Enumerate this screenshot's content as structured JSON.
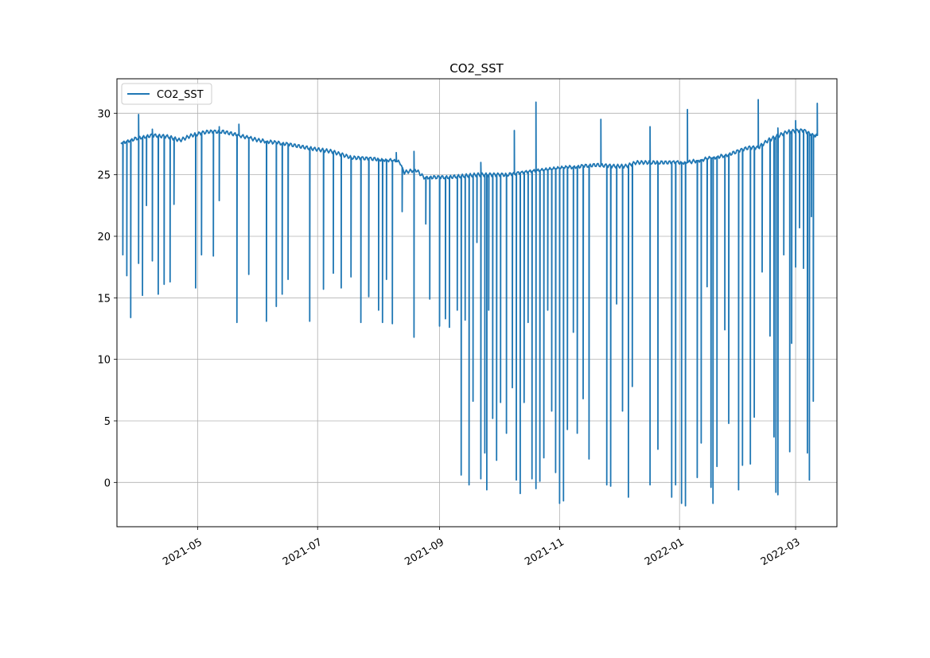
{
  "chart_data": {
    "type": "line",
    "title": "CO2_SST",
    "xlabel": "",
    "ylabel": "",
    "x_axis_type": "date",
    "xlim": [
      "2021-03-21",
      "2022-03-22"
    ],
    "ylim": [
      -3.6,
      32.8
    ],
    "x_ticks": [
      "2021-05",
      "2021-07",
      "2021-09",
      "2021-11",
      "2022-01",
      "2022-03"
    ],
    "x_tick_dates": [
      "2021-05-01",
      "2021-07-01",
      "2021-09-01",
      "2021-11-01",
      "2022-01-01",
      "2022-03-01"
    ],
    "y_ticks": [
      0,
      5,
      10,
      15,
      20,
      25,
      30
    ],
    "grid": true,
    "legend": {
      "position": "top-left",
      "entries": [
        "CO2_SST"
      ]
    },
    "line_color": "#1f77b4",
    "series": [
      {
        "name": "CO2_SST",
        "baseline": [
          [
            "2021-03-23",
            27.6
          ],
          [
            "2021-04-01",
            28.0
          ],
          [
            "2021-04-08",
            28.2
          ],
          [
            "2021-04-16",
            28.1
          ],
          [
            "2021-04-22",
            27.8
          ],
          [
            "2021-04-28",
            28.2
          ],
          [
            "2021-05-06",
            28.5
          ],
          [
            "2021-05-14",
            28.5
          ],
          [
            "2021-05-22",
            28.2
          ],
          [
            "2021-06-01",
            27.8
          ],
          [
            "2021-06-15",
            27.5
          ],
          [
            "2021-06-29",
            27.1
          ],
          [
            "2021-07-08",
            26.9
          ],
          [
            "2021-07-18",
            26.4
          ],
          [
            "2021-07-28",
            26.3
          ],
          [
            "2021-08-06",
            26.2
          ],
          [
            "2021-08-12",
            26.0
          ],
          [
            "2021-08-14",
            25.2
          ],
          [
            "2021-08-20",
            25.4
          ],
          [
            "2021-08-24",
            24.8
          ],
          [
            "2021-09-05",
            24.8
          ],
          [
            "2021-09-20",
            25.0
          ],
          [
            "2021-10-05",
            25.0
          ],
          [
            "2021-10-20",
            25.3
          ],
          [
            "2021-11-05",
            25.6
          ],
          [
            "2021-11-20",
            25.8
          ],
          [
            "2021-11-28",
            25.7
          ],
          [
            "2021-12-05",
            25.7
          ],
          [
            "2021-12-10",
            26.0
          ],
          [
            "2021-12-25",
            26.0
          ],
          [
            "2022-01-05",
            26.0
          ],
          [
            "2022-01-15",
            26.3
          ],
          [
            "2022-01-25",
            26.6
          ],
          [
            "2022-02-05",
            27.2
          ],
          [
            "2022-02-10",
            27.2
          ],
          [
            "2022-02-15",
            27.8
          ],
          [
            "2022-02-25",
            28.5
          ],
          [
            "2022-03-05",
            28.6
          ],
          [
            "2022-03-10",
            28.2
          ]
        ],
        "drops": [
          [
            "2021-03-24",
            18.5
          ],
          [
            "2021-03-26",
            16.8
          ],
          [
            "2021-03-28",
            13.4
          ],
          [
            "2021-04-01",
            17.8
          ],
          [
            "2021-04-03",
            15.2
          ],
          [
            "2021-04-05",
            22.5
          ],
          [
            "2021-04-08",
            18.0
          ],
          [
            "2021-04-11",
            15.3
          ],
          [
            "2021-04-14",
            16.1
          ],
          [
            "2021-04-17",
            16.3
          ],
          [
            "2021-04-19",
            22.6
          ],
          [
            "2021-04-30",
            15.8
          ],
          [
            "2021-05-03",
            18.5
          ],
          [
            "2021-05-09",
            18.4
          ],
          [
            "2021-05-12",
            22.9
          ],
          [
            "2021-05-21",
            13.0
          ],
          [
            "2021-05-27",
            16.9
          ],
          [
            "2021-06-05",
            13.1
          ],
          [
            "2021-06-10",
            14.3
          ],
          [
            "2021-06-13",
            15.3
          ],
          [
            "2021-06-16",
            16.5
          ],
          [
            "2021-06-27",
            13.1
          ],
          [
            "2021-07-04",
            15.7
          ],
          [
            "2021-07-09",
            17.0
          ],
          [
            "2021-07-13",
            15.8
          ],
          [
            "2021-07-18",
            16.7
          ],
          [
            "2021-07-23",
            13.0
          ],
          [
            "2021-07-27",
            15.1
          ],
          [
            "2021-08-01",
            14.0
          ],
          [
            "2021-08-03",
            13.0
          ],
          [
            "2021-08-05",
            16.5
          ],
          [
            "2021-08-08",
            12.9
          ],
          [
            "2021-08-13",
            22.0
          ],
          [
            "2021-08-19",
            11.8
          ],
          [
            "2021-08-25",
            21.0
          ],
          [
            "2021-08-27",
            14.9
          ],
          [
            "2021-09-01",
            12.7
          ],
          [
            "2021-09-04",
            13.3
          ],
          [
            "2021-09-06",
            12.6
          ],
          [
            "2021-09-10",
            14.0
          ],
          [
            "2021-09-12",
            0.6
          ],
          [
            "2021-09-14",
            13.2
          ],
          [
            "2021-09-16",
            -0.2
          ],
          [
            "2021-09-18",
            6.6
          ],
          [
            "2021-09-20",
            19.5
          ],
          [
            "2021-09-22",
            0.3
          ],
          [
            "2021-09-24",
            2.4
          ],
          [
            "2021-09-25",
            -0.6
          ],
          [
            "2021-09-26",
            14.0
          ],
          [
            "2021-09-28",
            5.2
          ],
          [
            "2021-09-30",
            1.8
          ],
          [
            "2021-10-02",
            6.5
          ],
          [
            "2021-10-05",
            4.0
          ],
          [
            "2021-10-08",
            7.7
          ],
          [
            "2021-10-10",
            0.2
          ],
          [
            "2021-10-12",
            -0.9
          ],
          [
            "2021-10-14",
            6.5
          ],
          [
            "2021-10-16",
            13.0
          ],
          [
            "2021-10-18",
            0.3
          ],
          [
            "2021-10-20",
            -0.5
          ],
          [
            "2021-10-22",
            0.1
          ],
          [
            "2021-10-24",
            2.0
          ],
          [
            "2021-10-26",
            14.0
          ],
          [
            "2021-10-28",
            5.8
          ],
          [
            "2021-10-30",
            0.8
          ],
          [
            "2021-11-01",
            -1.7
          ],
          [
            "2021-11-03",
            -1.5
          ],
          [
            "2021-11-05",
            4.3
          ],
          [
            "2021-11-08",
            12.2
          ],
          [
            "2021-11-10",
            4.0
          ],
          [
            "2021-11-13",
            6.8
          ],
          [
            "2021-11-16",
            1.9
          ],
          [
            "2021-11-25",
            -0.2
          ],
          [
            "2021-11-27",
            -0.3
          ],
          [
            "2021-11-30",
            14.5
          ],
          [
            "2021-12-03",
            5.8
          ],
          [
            "2021-12-06",
            -1.2
          ],
          [
            "2021-12-08",
            7.8
          ],
          [
            "2021-12-17",
            -0.2
          ],
          [
            "2021-12-21",
            2.7
          ],
          [
            "2021-12-28",
            -1.2
          ],
          [
            "2021-12-30",
            -0.2
          ],
          [
            "2022-01-02",
            -1.7
          ],
          [
            "2022-01-04",
            -1.9
          ],
          [
            "2022-01-10",
            0.4
          ],
          [
            "2022-01-12",
            3.2
          ],
          [
            "2022-01-15",
            15.9
          ],
          [
            "2022-01-17",
            -0.4
          ],
          [
            "2022-01-18",
            -1.7
          ],
          [
            "2022-01-20",
            1.3
          ],
          [
            "2022-01-24",
            12.4
          ],
          [
            "2022-01-26",
            4.8
          ],
          [
            "2022-01-31",
            -0.6
          ],
          [
            "2022-02-02",
            1.4
          ],
          [
            "2022-02-06",
            1.5
          ],
          [
            "2022-02-08",
            5.3
          ],
          [
            "2022-02-12",
            17.1
          ],
          [
            "2022-02-16",
            11.9
          ],
          [
            "2022-02-18",
            3.7
          ],
          [
            "2022-02-19",
            -0.8
          ],
          [
            "2022-02-20",
            -1.0
          ],
          [
            "2022-02-23",
            18.5
          ],
          [
            "2022-02-26",
            2.5
          ],
          [
            "2022-02-27",
            11.3
          ],
          [
            "2022-03-01",
            17.5
          ],
          [
            "2022-03-03",
            20.7
          ],
          [
            "2022-03-05",
            17.4
          ],
          [
            "2022-03-07",
            2.4
          ],
          [
            "2022-03-08",
            0.2
          ],
          [
            "2022-03-09",
            21.6
          ],
          [
            "2022-03-10",
            6.6
          ]
        ],
        "spikes": [
          [
            "2021-04-01",
            29.9
          ],
          [
            "2021-04-08",
            28.7
          ],
          [
            "2021-05-12",
            28.9
          ],
          [
            "2021-05-22",
            29.1
          ],
          [
            "2021-08-10",
            26.8
          ],
          [
            "2021-08-19",
            26.9
          ],
          [
            "2021-09-22",
            26.0
          ],
          [
            "2021-10-09",
            28.6
          ],
          [
            "2021-10-20",
            30.9
          ],
          [
            "2021-11-22",
            29.5
          ],
          [
            "2021-12-17",
            28.9
          ],
          [
            "2022-01-05",
            30.3
          ],
          [
            "2022-02-10",
            31.1
          ],
          [
            "2022-02-20",
            28.8
          ],
          [
            "2022-03-01",
            29.4
          ],
          [
            "2022-03-12",
            30.8
          ]
        ]
      }
    ]
  }
}
